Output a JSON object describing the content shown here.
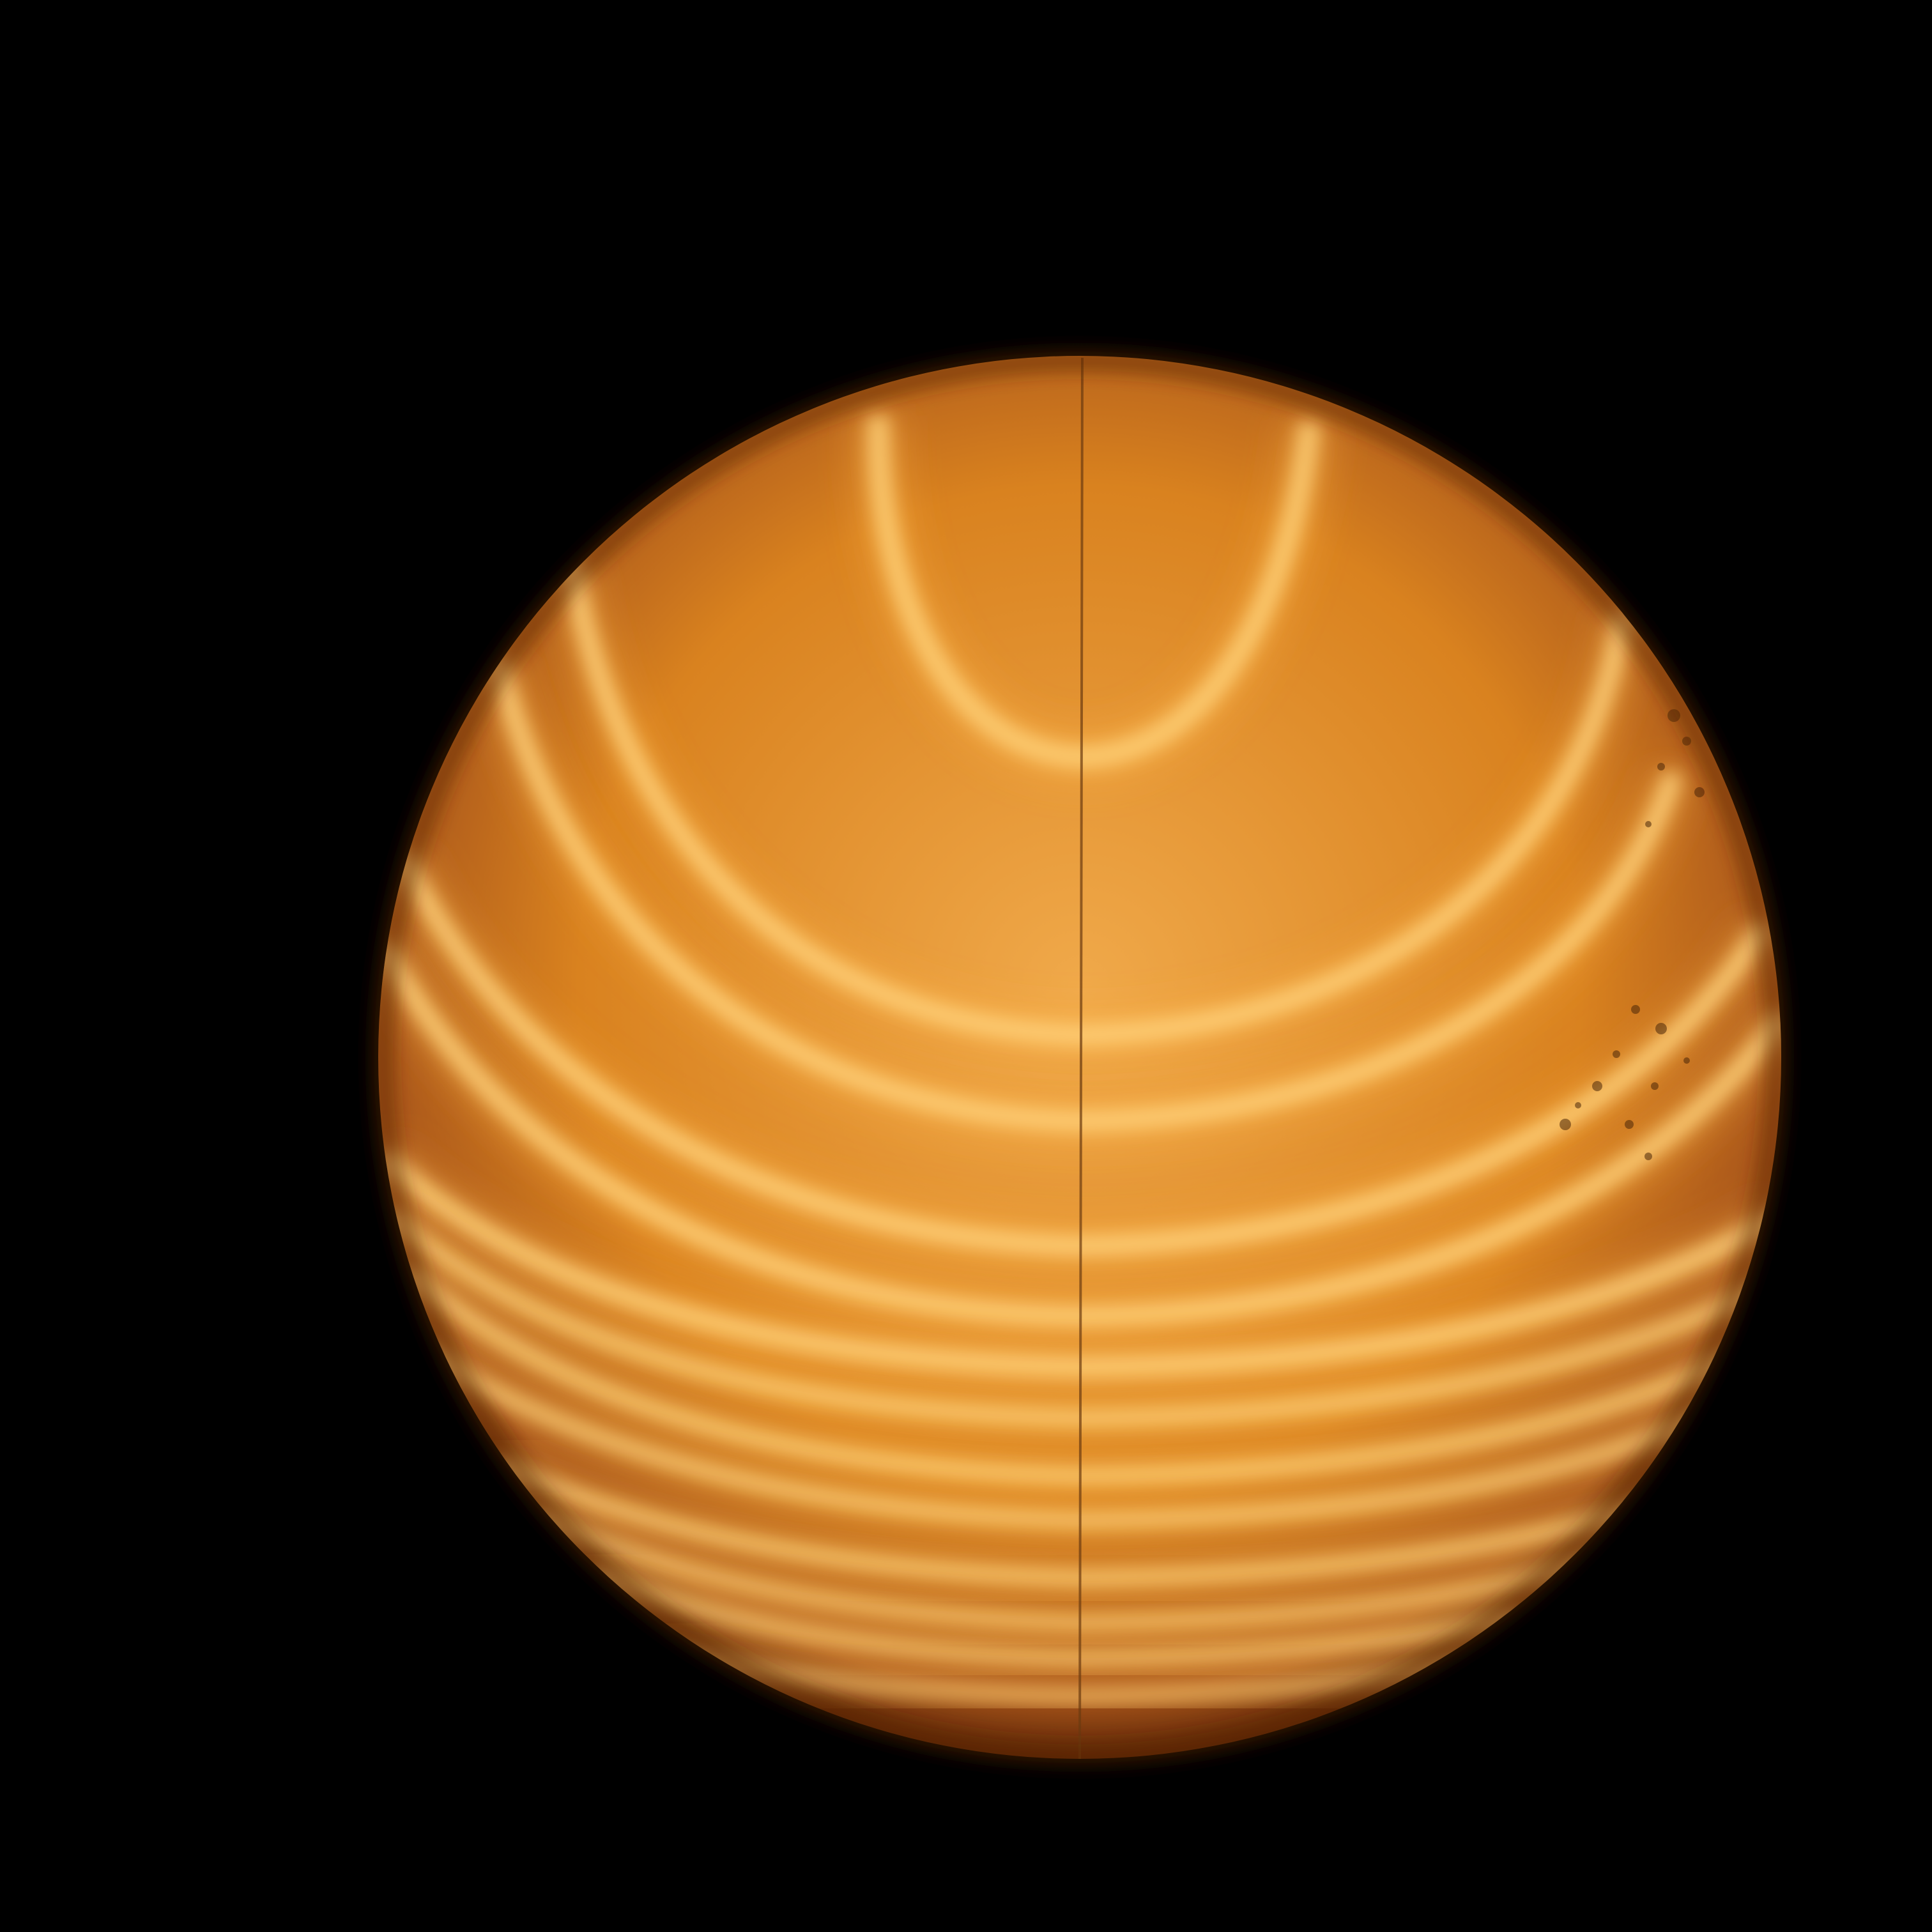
{
  "scene": {
    "subject": "interference-fringes",
    "colors": {
      "background": "#000000",
      "disc_base": "#d9821f",
      "disc_center": "#f0a94a",
      "disc_edge": "#5a2405",
      "fringe_bright": "#ffb84a",
      "fringe_core": "#ffd27a",
      "crosshair": "#6b3a10",
      "speckle": "#4a2608"
    },
    "fringe_count": 12
  }
}
